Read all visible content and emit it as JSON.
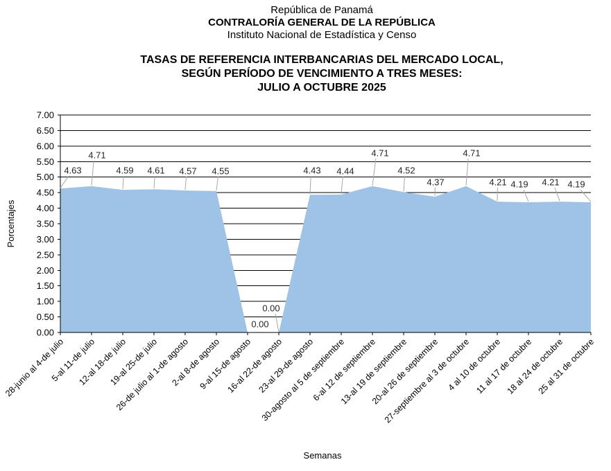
{
  "header": {
    "line1": "República de Panamá",
    "line2": "CONTRALORÍA GENERAL DE LA REPÚBLICA",
    "line3": "Instituto Nacional de Estadística y Censo"
  },
  "title": {
    "line1": "TASAS DE REFERENCIA INTERBANCARIAS DEL MERCADO LOCAL,",
    "line2": "SEGÚN PERÍODO DE VENCIMIENTO A TRES MESES:",
    "line3": "JULIO A OCTUBRE 2025"
  },
  "chart_data": {
    "type": "area",
    "title": "TASAS DE REFERENCIA INTERBANCARIAS DEL MERCADO LOCAL, SEGÚN PERÍODO DE VENCIMIENTO A TRES MESES: JULIO A OCTUBRE 2025",
    "categories": [
      "28-junio al 4-de julio",
      "5-al 11-de julio",
      "12-al 18-de julio",
      "19-al 25-de julio",
      "26-de julio al 1-de agosto",
      "2-al 8-de agosto",
      "9-al 15-de agosto",
      "16-al 22-de agosto",
      "23-al 29-de agosto",
      "30-agosto al 5 de septiembre",
      "6-al 12 de septiembre",
      "13-al 19 de septiembre",
      "20-al 26 de septiembre",
      "27-septiembre al 3 de octubre",
      "4 al 10 de octubre",
      "11 al 17 de octubre",
      "18 al 24 de octubre",
      "25 al 31 de octubre"
    ],
    "values": [
      4.63,
      4.71,
      4.59,
      4.61,
      4.57,
      4.55,
      0.0,
      0.0,
      4.43,
      4.44,
      4.71,
      4.52,
      4.37,
      4.71,
      4.21,
      4.19,
      4.21,
      4.19
    ],
    "xlabel": "Semanas",
    "ylabel": "Porcentajes",
    "ylim": [
      0,
      7
    ],
    "ystep": 0.5,
    "grid": true,
    "legend": "none",
    "area_color": "#9EC3E6",
    "leader_color": "#A6A6A6",
    "label_color": "#262626",
    "axis_color": "#000000"
  }
}
